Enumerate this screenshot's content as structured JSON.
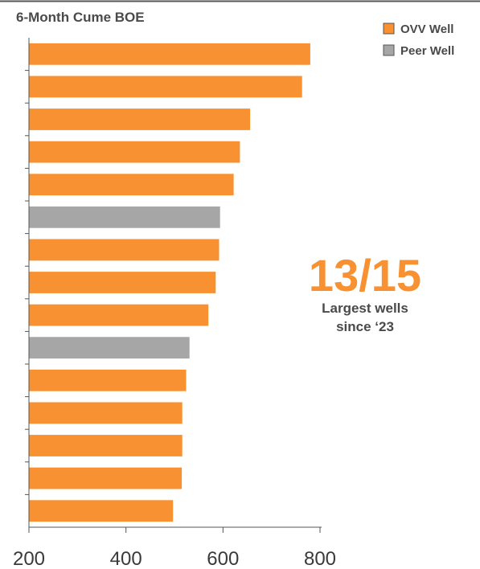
{
  "chart_data": {
    "type": "bar",
    "orientation": "horizontal",
    "title": "6-Month Cume BOE",
    "xlabel": "",
    "ylabel": "",
    "xlim": [
      200,
      800
    ],
    "xticks": [
      200,
      400,
      600,
      800
    ],
    "grid": false,
    "legend_position": "top-right",
    "series": [
      {
        "name": "OVV Well",
        "color": "#F79131"
      },
      {
        "name": "Peer Well",
        "color": "#A6A6A6"
      }
    ],
    "bars": [
      {
        "value": 780,
        "series": "OVV Well"
      },
      {
        "value": 763,
        "series": "OVV Well"
      },
      {
        "value": 656,
        "series": "OVV Well"
      },
      {
        "value": 635,
        "series": "OVV Well"
      },
      {
        "value": 622,
        "series": "OVV Well"
      },
      {
        "value": 594,
        "series": "Peer Well"
      },
      {
        "value": 592,
        "series": "OVV Well"
      },
      {
        "value": 585,
        "series": "OVV Well"
      },
      {
        "value": 570,
        "series": "OVV Well"
      },
      {
        "value": 531,
        "series": "Peer Well"
      },
      {
        "value": 524,
        "series": "OVV Well"
      },
      {
        "value": 516,
        "series": "OVV Well"
      },
      {
        "value": 516,
        "series": "OVV Well"
      },
      {
        "value": 515,
        "series": "OVV Well"
      },
      {
        "value": 497,
        "series": "OVV Well"
      }
    ]
  },
  "callout": {
    "number": "13/15",
    "line1": "Largest wells",
    "line2": "since ‘23",
    "color": "#F79131"
  }
}
